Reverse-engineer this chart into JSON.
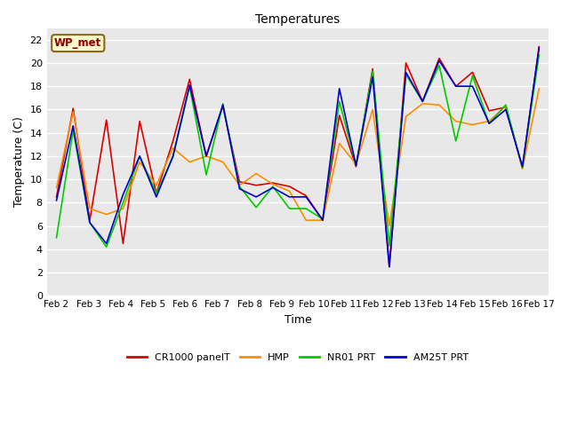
{
  "title": "Temperatures",
  "xlabel": "Time",
  "ylabel": "Temperature (C)",
  "ylim": [
    0,
    23
  ],
  "yticks": [
    0,
    2,
    4,
    6,
    8,
    10,
    12,
    14,
    16,
    18,
    20,
    22
  ],
  "xtick_labels": [
    "Feb 2",
    "Feb 3",
    "Feb 4",
    "Feb 5",
    "Feb 6",
    "Feb 7",
    "Feb 8",
    "Feb 9",
    "Feb 10",
    "Feb 11",
    "Feb 12",
    "Feb 13",
    "Feb 14",
    "Feb 15",
    "Feb 16",
    "Feb 17"
  ],
  "station_label": "WP_met",
  "plot_bg_color": "#e8e8e8",
  "fig_bg_color": "#ffffff",
  "series": {
    "CR1000_panelT": {
      "color": "#dd0000",
      "label": "CR1000 panelT",
      "values": [
        8.5,
        16.1,
        6.5,
        15.1,
        4.5,
        15.0,
        8.8,
        13.3,
        18.6,
        12.0,
        16.3,
        9.8,
        9.5,
        9.7,
        9.4,
        8.6,
        6.5,
        15.5,
        11.1,
        19.5,
        2.5,
        20.0,
        16.7,
        20.4,
        18.0,
        19.2,
        15.9,
        16.2,
        11.0,
        21.4
      ]
    },
    "HMP": {
      "color": "#ff8c00",
      "label": "HMP",
      "values": [
        9.3,
        15.8,
        7.5,
        7.0,
        7.5,
        11.5,
        9.5,
        12.7,
        11.5,
        12.0,
        11.5,
        9.5,
        10.5,
        9.6,
        9.0,
        6.5,
        6.5,
        13.1,
        11.3,
        16.0,
        6.0,
        15.4,
        16.5,
        16.4,
        15.0,
        14.7,
        15.0,
        16.3,
        10.9,
        17.8
      ]
    },
    "NR01_PRT": {
      "color": "#00cc00",
      "label": "NR01 PRT",
      "values": [
        5.0,
        14.2,
        6.3,
        4.2,
        8.0,
        12.0,
        8.8,
        11.9,
        18.0,
        10.4,
        16.5,
        9.4,
        7.6,
        9.4,
        7.5,
        7.5,
        6.6,
        16.7,
        11.2,
        19.3,
        4.3,
        19.0,
        16.7,
        19.8,
        13.3,
        18.9,
        14.8,
        16.4,
        11.0,
        20.7
      ]
    },
    "AM25T_PRT": {
      "color": "#0000cc",
      "label": "AM25T PRT",
      "values": [
        8.2,
        14.6,
        6.3,
        4.5,
        8.7,
        12.0,
        8.5,
        12.0,
        18.1,
        12.0,
        16.4,
        9.2,
        8.5,
        9.3,
        8.5,
        8.5,
        6.5,
        17.8,
        11.2,
        18.8,
        2.5,
        19.2,
        16.7,
        20.2,
        18.0,
        18.0,
        14.8,
        16.0,
        11.1,
        21.3
      ]
    }
  }
}
